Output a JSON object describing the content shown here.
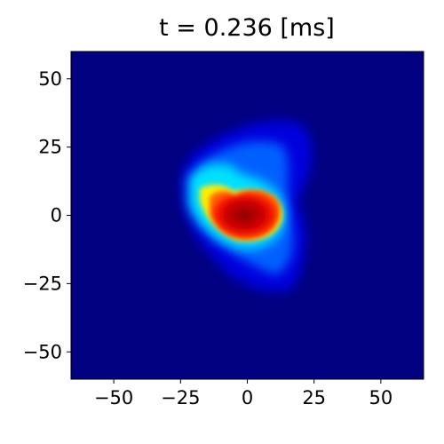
{
  "chart_data": {
    "type": "heatmap",
    "title": "t = 0.236 [ms]",
    "xlim": [
      -66,
      66
    ],
    "ylim": [
      -60,
      60
    ],
    "xticks": [
      {
        "value": -50,
        "label": "−50"
      },
      {
        "value": -25,
        "label": "−25"
      },
      0,
      25,
      50
    ],
    "yticks": [
      {
        "value": -50,
        "label": "−50"
      },
      {
        "value": -25,
        "label": "−25"
      },
      0,
      25,
      50
    ],
    "color": "#000080"
  }
}
